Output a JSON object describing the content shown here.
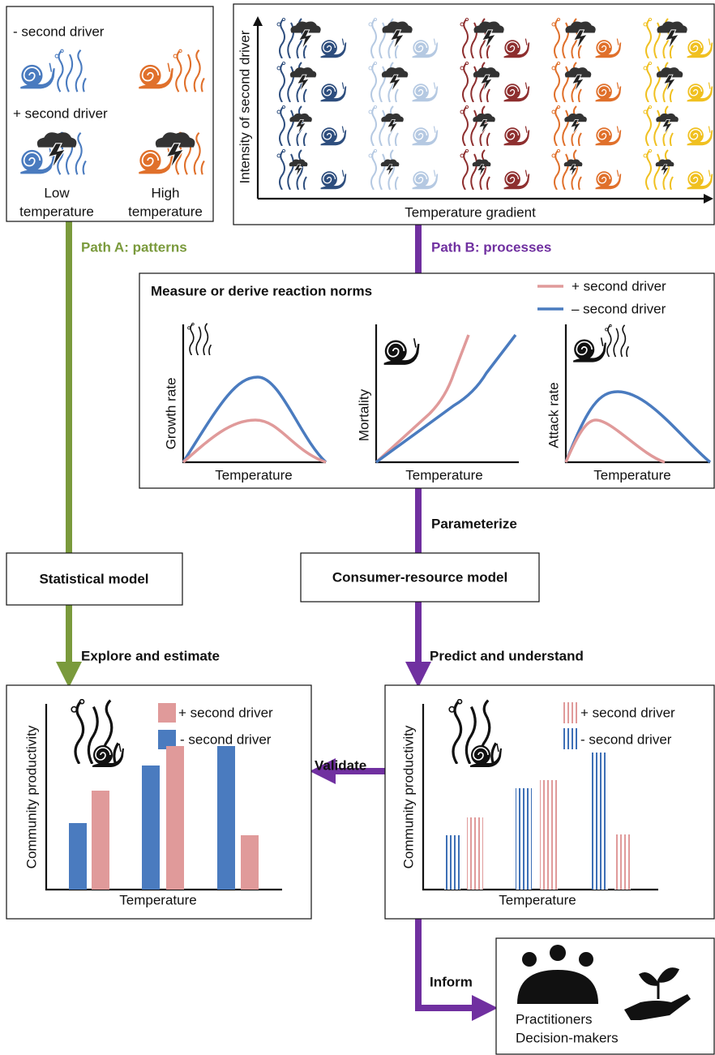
{
  "panel_drivers": {
    "minus_label": "- second driver",
    "plus_label": "+ second driver",
    "low_label": [
      "Low",
      "temperature"
    ],
    "high_label": [
      "High",
      "temperature"
    ]
  },
  "panel_gradient": {
    "y_axis": "Intensity of second driver",
    "x_axis": "Temperature gradient"
  },
  "path_a": "Path A: patterns",
  "path_b": "Path B: processes",
  "reaction_norms": {
    "title": "Measure or derive reaction norms",
    "legend": [
      "+ second driver",
      "– second driver"
    ],
    "plots": [
      {
        "y_label": "Growth rate",
        "x_label": "Temperature"
      },
      {
        "y_label": "Mortality",
        "x_label": "Temperature"
      },
      {
        "y_label": "Attack rate",
        "x_label": "Temperature"
      }
    ]
  },
  "steps": {
    "parameterize": "Parameterize",
    "statistical_model": "Statistical model",
    "consumer_resource_model": "Consumer-resource model",
    "explore": "Explore and estimate",
    "predict": "Predict and understand",
    "validate": "Validate",
    "inform": "Inform"
  },
  "observed": {
    "y_label": "Community productivity",
    "legend": [
      "+ second driver",
      "- second driver"
    ],
    "x_label": "Temperature"
  },
  "predicted": {
    "y_label": "Community productivity",
    "legend": [
      "+ second driver",
      "- second driver"
    ],
    "x_label": "Temperature"
  },
  "stakeholders": [
    "Practitioners",
    "Decision-makers"
  ]
}
